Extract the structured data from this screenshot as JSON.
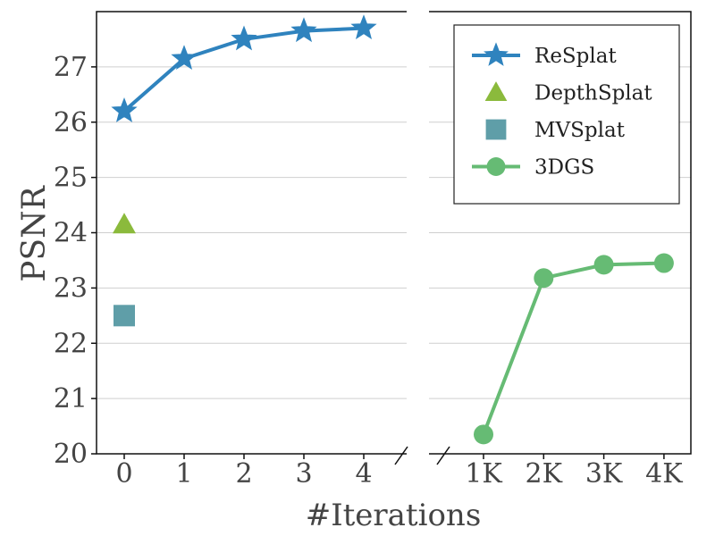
{
  "chart_data": {
    "type": "line",
    "xlabel": "#Iterations",
    "ylabel": "PSNR",
    "ylim": [
      20,
      28
    ],
    "grid": "y",
    "legend_position": "top-right",
    "x_axis_break": true,
    "yticks": [
      20,
      21,
      22,
      23,
      24,
      25,
      26,
      27
    ],
    "ytick_labels": [
      "20",
      "21",
      "22",
      "23",
      "24",
      "25",
      "26",
      "27"
    ],
    "left_panel": {
      "xticks": [
        "0",
        "1",
        "2",
        "3",
        "4"
      ]
    },
    "right_panel": {
      "xticks": [
        "1K",
        "2K",
        "3K",
        "4K"
      ]
    },
    "series": [
      {
        "name": "ReSplat",
        "panel": "left",
        "marker": "star",
        "line": true,
        "color": "#2f83be",
        "x": [
          "0",
          "1",
          "2",
          "3",
          "4"
        ],
        "y": [
          26.2,
          27.15,
          27.5,
          27.65,
          27.7
        ]
      },
      {
        "name": "DepthSplat",
        "panel": "left",
        "marker": "triangle",
        "line": false,
        "color": "#8bba3c",
        "x": [
          "0"
        ],
        "y": [
          24.15
        ]
      },
      {
        "name": "MVSplat",
        "panel": "left",
        "marker": "square",
        "line": false,
        "color": "#5f9ea8",
        "x": [
          "0"
        ],
        "y": [
          22.5
        ]
      },
      {
        "name": "3DGS",
        "panel": "right",
        "marker": "circle",
        "line": true,
        "color": "#66bb74",
        "x": [
          "1K",
          "2K",
          "3K",
          "4K"
        ],
        "y": [
          20.35,
          23.18,
          23.42,
          23.45
        ]
      }
    ]
  }
}
